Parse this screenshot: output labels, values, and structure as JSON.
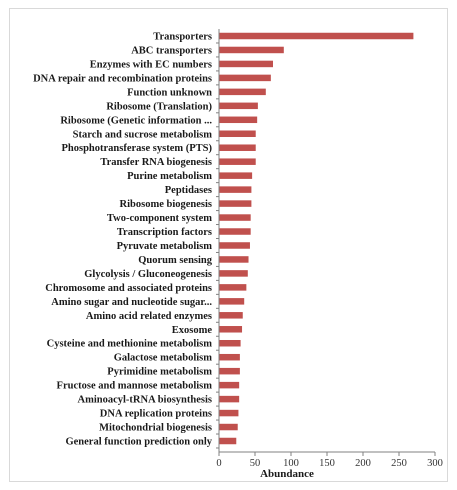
{
  "chart_data": {
    "type": "bar",
    "orientation": "horizontal",
    "categories": [
      "Transporters",
      "ABC transporters",
      "Enzymes with EC numbers",
      "DNA repair and recombination proteins",
      "Function unknown",
      "Ribosome  (Translation)",
      "Ribosome  (Genetic information ...",
      "Starch and sucrose metabolism",
      "Phosphotransferase system (PTS)",
      "Transfer RNA biogenesis",
      "Purine metabolism",
      "Peptidases",
      "Ribosome biogenesis",
      "Two-component system",
      "Transcription factors",
      "Pyruvate metabolism",
      "Quorum sensing",
      "Glycolysis / Gluconeogenesis",
      "Chromosome and associated proteins",
      "Amino sugar and nucleotide sugar...",
      "Amino acid related enzymes",
      "Exosome",
      "Cysteine and methionine metabolism",
      "Galactose metabolism",
      "Pyrimidine metabolism",
      "Fructose and mannose metabolism",
      "Aminoacyl-tRNA biosynthesis",
      "DNA replication proteins",
      "Mitochondrial biogenesis",
      "General function prediction only"
    ],
    "values": [
      270,
      90,
      75,
      72,
      65,
      54,
      53,
      51,
      51,
      51,
      46,
      45,
      45,
      44,
      44,
      43,
      41,
      40,
      38,
      35,
      33,
      32,
      30,
      29,
      29,
      28,
      28,
      27,
      26,
      24
    ],
    "xlabel": "Abundance",
    "ylabel": "",
    "title": "",
    "xlim": [
      0,
      300
    ],
    "xticks": [
      0,
      50,
      100,
      150,
      200,
      250,
      300
    ],
    "grid": false,
    "legend": "none",
    "bar_color": "#c0504d"
  }
}
